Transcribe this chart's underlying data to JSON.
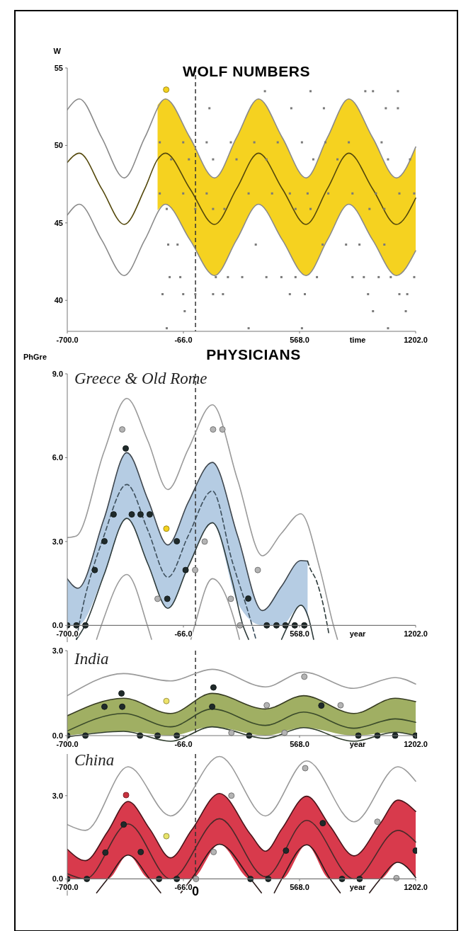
{
  "chart_data": [
    {
      "type": "line",
      "title": "WOLF NUMBERS",
      "ylabel": "W",
      "xlabel": "time",
      "xlim": [
        -700,
        1202
      ],
      "ylim": [
        38,
        55
      ],
      "xticks": [
        {
          "value": -700,
          "label": "-700.0"
        },
        {
          "value": -66,
          "label": "-66.0"
        },
        {
          "value": 568,
          "label": "568.0"
        },
        {
          "value": 1202,
          "label": "1202.0"
        }
      ],
      "yticks": [
        40,
        45,
        50,
        55
      ],
      "ref_lines": [
        {
          "axis": "x",
          "value": 0,
          "line_style": "dashed",
          "color": "#333333"
        }
      ],
      "series": [
        {
          "type": "line",
          "color": "#8a8a8a",
          "x": [
            -700,
            -634,
            -512,
            -389,
            -277,
            -164,
            -30,
            104,
            224,
            344,
            474,
            604,
            720,
            837,
            967,
            1097,
            1202
          ],
          "values": [
            52.3,
            53.0,
            50.5,
            47.9,
            50.5,
            53.0,
            50.5,
            47.9,
            50.5,
            53.0,
            50.5,
            47.9,
            50.5,
            53.0,
            50.5,
            47.9,
            49.9
          ]
        },
        {
          "type": "line",
          "color": "#54480b",
          "x": [
            -700,
            -634,
            -512,
            -389,
            -277,
            -207,
            -164,
            -30,
            104,
            224,
            344,
            474,
            604,
            720,
            837,
            967,
            1097,
            1202
          ],
          "values": [
            48.9,
            49.5,
            47.2,
            44.9,
            47.2,
            49.1,
            49.5,
            47.2,
            44.9,
            47.2,
            49.5,
            47.2,
            44.9,
            47.2,
            49.5,
            47.2,
            44.9,
            46.6
          ],
          "upper": [
            null,
            null,
            null,
            null,
            null,
            52.6,
            53.0,
            50.5,
            47.9,
            50.5,
            53.0,
            50.5,
            47.9,
            50.5,
            53.0,
            50.5,
            47.9,
            49.9
          ],
          "lower": [
            null,
            null,
            null,
            null,
            null,
            45.8,
            46.2,
            43.9,
            41.6,
            43.9,
            46.2,
            43.9,
            41.6,
            43.9,
            46.2,
            43.9,
            41.6,
            43.2
          ]
        },
        {
          "type": "line",
          "color": "#8a8a8a",
          "x": [
            -700,
            -634,
            -512,
            -389,
            -277,
            -164,
            -30,
            104,
            224,
            344,
            474,
            604,
            720,
            837,
            967,
            1097,
            1202
          ],
          "values": [
            45.5,
            46.2,
            43.9,
            41.6,
            43.9,
            46.2,
            43.9,
            41.6,
            43.9,
            46.2,
            43.9,
            41.6,
            43.9,
            46.2,
            43.9,
            41.6,
            43.2
          ]
        },
        {
          "type": "scatter",
          "marker": "square",
          "color": "#7a7a7a",
          "x": [
            379,
            628,
            927,
            969,
            1105,
            76,
            523,
            701,
            1039,
            1105,
            -195,
            -67,
            61,
            193,
            321,
            449,
            581,
            709,
            837,
            1016,
            -133,
            -36,
            96,
            224,
            387,
            643,
            775,
            1051,
            1171,
            -195,
            -67,
            61,
            290,
            418,
            515,
            612,
            725,
            857,
            985,
            1113,
            1194,
            -157,
            -1,
            96,
            158,
            546,
            628,
            950,
            1031,
            -149,
            -98,
            329,
            694,
            822,
            895,
            1031,
            -141,
            -83,
            111,
            177,
            255,
            387,
            469,
            546,
            663,
            857,
            919,
            1000,
            1066,
            1194,
            -180,
            -67,
            -1,
            96,
            150,
            515,
            597,
            942,
            1113,
            1156,
            -59,
            969,
            1148,
            -157,
            290,
            581,
            1051
          ],
          "values": [
            53.5,
            53.5,
            53.5,
            53.5,
            53.5,
            52.4,
            52.4,
            52.4,
            52.4,
            52.4,
            50.2,
            50.2,
            50.2,
            50.2,
            50.2,
            50.2,
            50.2,
            50.2,
            50.2,
            50.2,
            49.1,
            49.1,
            49.1,
            49.1,
            49.1,
            49.1,
            49.1,
            49.1,
            49.1,
            46.9,
            46.9,
            46.9,
            46.9,
            46.9,
            46.9,
            46.9,
            46.9,
            46.9,
            46.9,
            46.9,
            46.9,
            45.9,
            45.9,
            45.9,
            45.9,
            45.9,
            45.9,
            45.9,
            45.9,
            43.6,
            43.6,
            43.6,
            43.6,
            43.6,
            43.6,
            43.6,
            41.5,
            41.5,
            41.5,
            41.5,
            41.5,
            41.5,
            41.5,
            41.5,
            41.5,
            41.5,
            41.5,
            41.5,
            41.5,
            41.5,
            40.4,
            40.4,
            40.4,
            40.4,
            40.4,
            40.4,
            40.4,
            40.4,
            40.4,
            40.4,
            39.3,
            39.3,
            39.3,
            38.2,
            38.2,
            38.2,
            38.2
          ]
        },
        {
          "type": "scatter",
          "marker": "circle",
          "color": "#f4d21f",
          "x": [
            -160
          ],
          "values": [
            53.6
          ]
        }
      ]
    },
    {
      "type": "line",
      "title": "PHYSICIANS",
      "subtitle": "Greece & Old Rome",
      "ylabel": "PhGre",
      "xlabel": "year",
      "xlim": [
        -700,
        1202
      ],
      "ylim": [
        -0.6,
        9
      ],
      "xticks": [
        {
          "value": -700,
          "label": "-700.0"
        },
        {
          "value": -66,
          "label": "-66.0"
        },
        {
          "value": 568,
          "label": "568.0"
        },
        {
          "value": 1202,
          "label": "1202.0"
        }
      ],
      "yticks": [
        {
          "value": 0,
          "label": "0.0"
        },
        {
          "value": 3,
          "label": "3.0"
        },
        {
          "value": 6,
          "label": "6.0"
        },
        {
          "value": 9,
          "label": "9.0"
        }
      ],
      "ref_lines": [
        {
          "axis": "x",
          "value": 0,
          "line_style": "dashed",
          "color": "#333333"
        }
      ],
      "series": [
        {
          "type": "line",
          "color": "#3e464e",
          "x": [
            -700,
            -642,
            -500,
            -375,
            -260,
            -151,
            -40,
            92,
            230,
            365,
            470,
            575,
            612
          ],
          "values": [
            1.67,
            1.33,
            3.8,
            6.18,
            4.5,
            2.88,
            4.4,
            5.83,
            3.2,
            0.53,
            1.4,
            2.32,
            2.3
          ],
          "upper": [
            1.67,
            1.33,
            3.8,
            6.18,
            4.5,
            2.88,
            4.4,
            5.83,
            3.2,
            0.53,
            1.4,
            2.32,
            2.3
          ],
          "lower": [
            0,
            0,
            1.8,
            3.83,
            2.2,
            0.61,
            2.1,
            3.67,
            0.8,
            0,
            0,
            0.72,
            0.3
          ]
        },
        {
          "type": "line",
          "color": "#9a9a9a",
          "x": [
            -700,
            -650,
            -500,
            -375,
            -260,
            -151,
            -40,
            92,
            230,
            365,
            470,
            575,
            680,
            753,
            775
          ],
          "values": [
            3.14,
            3.2,
            6.2,
            8.12,
            6.6,
            4.86,
            6.3,
            7.89,
            5.2,
            2.49,
            3.3,
            3.99,
            2.0,
            0,
            -0.5
          ]
        },
        {
          "type": "line",
          "color": "#2e3b3b",
          "line_style": "dashed",
          "x": [
            612,
            622,
            660,
            695,
            728
          ],
          "values": [
            2.3,
            2.1,
            1.6,
            0.8,
            -0.3
          ]
        },
        {
          "type": "line",
          "color": "#3d4f5c",
          "line_style": "dashed",
          "x": [
            -650,
            -636,
            -500,
            -375,
            -260,
            -151,
            -40,
            92,
            200,
            309,
            330
          ],
          "values": [
            -0.5,
            0,
            3.2,
            5.04,
            3.4,
            1.72,
            3.2,
            4.81,
            2.3,
            0,
            -0.5
          ]
        },
        {
          "type": "line",
          "color": "#2e3b3b",
          "x": [
            -650,
            -603,
            -500,
            -375,
            -260,
            -151,
            -40,
            92,
            200,
            259,
            290
          ],
          "values": [
            -0.5,
            0,
            1.8,
            3.83,
            2.2,
            0.61,
            2.1,
            3.67,
            1.6,
            0,
            -0.5
          ]
        },
        {
          "type": "line",
          "color": "#2e3b3b",
          "x": [
            470,
            505,
            575,
            620,
            645
          ],
          "values": [
            -0.5,
            0,
            0.72,
            0.2,
            -0.5
          ]
        },
        {
          "type": "line",
          "color": "#9a9a9a",
          "x": [
            -540,
            -514,
            -375,
            -263,
            -240
          ],
          "values": [
            -0.5,
            0,
            1.82,
            0,
            -0.5
          ]
        },
        {
          "type": "line",
          "color": "#9a9a9a",
          "x": [
            -25,
            -4,
            92,
            220,
            240
          ],
          "values": [
            -0.5,
            0,
            1.67,
            0,
            -0.5
          ]
        },
        {
          "type": "scatter",
          "marker": "circle",
          "color": "#b4b4b4",
          "x": [
            -400,
            96,
            147,
            50,
            -2,
            -207,
            193,
            340,
            243
          ],
          "values": [
            7.01,
            7.01,
            7.01,
            3.0,
            1.98,
            0.95,
            0.95,
            1.98,
            0
          ]
        },
        {
          "type": "scatter",
          "marker": "circle",
          "color": "#1f2a2a",
          "x": [
            -700,
            -650,
            -601,
            389,
            442,
            491,
            542,
            594,
            -550,
            -497,
            -447,
            -348,
            -300,
            -250,
            -154,
            -102,
            -54,
            288,
            -381
          ],
          "values": [
            0,
            0,
            0,
            0,
            0,
            0,
            0,
            0,
            1.98,
            3.01,
            3.97,
            3.97,
            3.97,
            3.97,
            0.95,
            3.01,
            1.98,
            0.96,
            6.33
          ]
        },
        {
          "type": "scatter",
          "marker": "circle",
          "color": "#f4d21f",
          "x": [
            -159
          ],
          "values": [
            3.46
          ]
        }
      ]
    },
    {
      "type": "line",
      "subtitle": "India",
      "xlabel": "year",
      "xlim": [
        -700,
        1202
      ],
      "ylim": [
        -0.4,
        3
      ],
      "xticks": [
        {
          "value": -700,
          "label": "-700.0"
        },
        {
          "value": -66,
          "label": "-66.0"
        },
        {
          "value": 568,
          "label": "568.0"
        },
        {
          "value": 1202,
          "label": "1202.0"
        }
      ],
      "yticks": [
        {
          "value": 0,
          "label": "0.0"
        },
        {
          "value": 3,
          "label": "3.0"
        }
      ],
      "ref_lines": [
        {
          "axis": "x",
          "value": 0,
          "line_style": "dashed",
          "color": "#333333"
        }
      ],
      "series": [
        {
          "type": "line",
          "color": "#373c22",
          "x": [
            -700,
            -392,
            -136,
            91,
            381,
            590,
            864,
            1090,
            1202
          ],
          "values": [
            0.7,
            1.32,
            0.78,
            1.49,
            0.94,
            1.41,
            0.78,
            1.32,
            1.2
          ],
          "upper": [
            0.7,
            1.32,
            0.78,
            1.49,
            0.94,
            1.41,
            0.78,
            1.32,
            1.2
          ],
          "lower": [
            0,
            0.15,
            0,
            0.31,
            0,
            0.28,
            0,
            0.12,
            0
          ]
        },
        {
          "type": "line",
          "color": "#9a9a9a",
          "x": [
            -700,
            -392,
            -136,
            91,
            381,
            590,
            864,
            1090,
            1202
          ],
          "values": [
            1.41,
            2.19,
            1.93,
            2.34,
            1.72,
            2.24,
            1.67,
            2.05,
            1.82
          ]
        },
        {
          "type": "line",
          "color": "#3a4a2a",
          "x": [
            -700,
            -392,
            -136,
            91,
            381,
            590,
            864,
            1090,
            1202
          ],
          "values": [
            0.16,
            0.78,
            0.31,
            0.94,
            0.36,
            0.83,
            0.26,
            0.59,
            0.47
          ]
        },
        {
          "type": "line",
          "color": "#2e3b2b",
          "x": [
            -700,
            -392,
            -136,
            91,
            381,
            590,
            864,
            1090,
            1202
          ],
          "values": [
            -0.05,
            0.15,
            -0.2,
            0.31,
            -0.1,
            0.28,
            -0.2,
            0.12,
            0.0
          ]
        },
        {
          "type": "scatter",
          "marker": "circle",
          "color": "#b4b4b4",
          "x": [
            389,
            792,
            594,
            196,
            486
          ],
          "values": [
            1.07,
            1.07,
            2.08,
            0.1,
            0.1
          ]
        },
        {
          "type": "scatter",
          "marker": "circle",
          "color": "#1f2a2a",
          "x": [
            -700,
            -601,
            -303,
            -207,
            -102,
            293,
            889,
            993,
            1090,
            1202,
            -497,
            -400,
            91,
            687,
            -404,
            98
          ],
          "values": [
            0,
            0,
            0,
            0,
            0,
            0,
            0,
            0,
            0,
            0,
            1.02,
            1.02,
            1.02,
            1.06,
            1.49,
            1.7
          ]
        },
        {
          "type": "scatter",
          "marker": "circle",
          "color": "#eee36a",
          "x": [
            -159
          ],
          "values": [
            1.22
          ]
        }
      ]
    },
    {
      "type": "line",
      "subtitle": "China",
      "xlabel": "year",
      "xlim": [
        -700,
        1202
      ],
      "ylim": [
        -0.6,
        4.5
      ],
      "xticks": [
        {
          "value": -700,
          "label": "-700.0"
        },
        {
          "value": -66,
          "label": "-66.0"
        },
        {
          "value": 568,
          "label": "568.0"
        },
        {
          "value": 1202,
          "label": "1202.0"
        }
      ],
      "yticks": [
        {
          "value": 0,
          "label": "0.0"
        },
        {
          "value": 3,
          "label": "3.0"
        }
      ],
      "ref_lines": [
        {
          "axis": "x",
          "value": 0,
          "label": "0",
          "line_style": "dashed",
          "color": "#333333"
        }
      ],
      "series": [
        {
          "type": "line",
          "color": "#4a141a",
          "x": [
            -700,
            -601,
            -480,
            -368,
            -250,
            -136,
            -22,
            131,
            301,
            382,
            471,
            607,
            735,
            865,
            1009,
            1105,
            1202
          ],
          "values": [
            1.07,
            0.66,
            1.7,
            2.79,
            1.8,
            0.76,
            1.75,
            3.08,
            1.6,
            1.0,
            1.8,
            2.98,
            1.9,
            0.83,
            2.0,
            2.84,
            2.43
          ],
          "upper": [
            1.07,
            0.66,
            1.7,
            2.79,
            1.8,
            0.76,
            1.75,
            3.08,
            1.6,
            1.0,
            1.8,
            2.98,
            1.9,
            0.83,
            2.0,
            2.84,
            2.43
          ],
          "lower": [
            0,
            0,
            0,
            0.86,
            0,
            0,
            0,
            1.25,
            0,
            0,
            0,
            1.23,
            0,
            0,
            0,
            0.6,
            0.05
          ]
        },
        {
          "type": "line",
          "color": "#9a9a9a",
          "x": [
            -700,
            -601,
            -368,
            -136,
            131,
            382,
            607,
            865,
            1105,
            1202
          ],
          "values": [
            1.96,
            1.75,
            4.04,
            2.27,
            4.41,
            2.27,
            4.25,
            2.06,
            4.04,
            3.52
          ]
        },
        {
          "type": "line",
          "color": "#4a2a2a",
          "x": [
            -700,
            -601,
            -368,
            -136,
            131,
            382,
            607,
            865,
            1105,
            1202
          ],
          "values": [
            0.19,
            0.0,
            1.98,
            0.0,
            2.17,
            0.08,
            2.11,
            0.0,
            1.75,
            1.33
          ]
        },
        {
          "type": "line",
          "color": "#2a1a1a",
          "x": [
            -540,
            -480,
            -368,
            -250,
            -190
          ],
          "values": [
            -0.5,
            0,
            0.86,
            0,
            -0.5
          ]
        },
        {
          "type": "line",
          "color": "#2a1a1a",
          "x": [
            -80,
            -22,
            131,
            301,
            360
          ],
          "values": [
            -0.5,
            0,
            1.25,
            0,
            -0.5
          ]
        },
        {
          "type": "line",
          "color": "#2a1a1a",
          "x": [
            430,
            471,
            607,
            735,
            790
          ],
          "values": [
            -0.5,
            0,
            1.23,
            0,
            -0.5
          ]
        },
        {
          "type": "line",
          "color": "#2a1a1a",
          "x": [
            950,
            1009,
            1105,
            1202
          ],
          "values": [
            -0.5,
            0,
            0.6,
            0.05
          ]
        },
        {
          "type": "scatter",
          "marker": "circle",
          "color": "#b4b4b4",
          "x": [
            3,
            99,
            196,
            599,
            993,
            1097
          ],
          "values": [
            0,
            0.97,
            3.0,
            3.99,
            2.06,
            0.03
          ]
        },
        {
          "type": "scatter",
          "marker": "circle",
          "color": "#1f2a2a",
          "x": [
            -700,
            -593,
            -199,
            -102,
            300,
            397,
            800,
            896,
            -492,
            -392,
            -299,
            494,
            695,
            1202
          ],
          "values": [
            0,
            0,
            0,
            0,
            0,
            0,
            0,
            0,
            0.95,
            1.96,
            0.97,
            1.02,
            2.01,
            1.02
          ]
        },
        {
          "type": "scatter",
          "marker": "circle",
          "color": "#c8323f",
          "x": [
            -379
          ],
          "values": [
            3.02
          ]
        },
        {
          "type": "scatter",
          "marker": "circle",
          "color": "#e8e46a",
          "x": [
            -159
          ],
          "values": [
            1.54
          ]
        }
      ]
    }
  ]
}
